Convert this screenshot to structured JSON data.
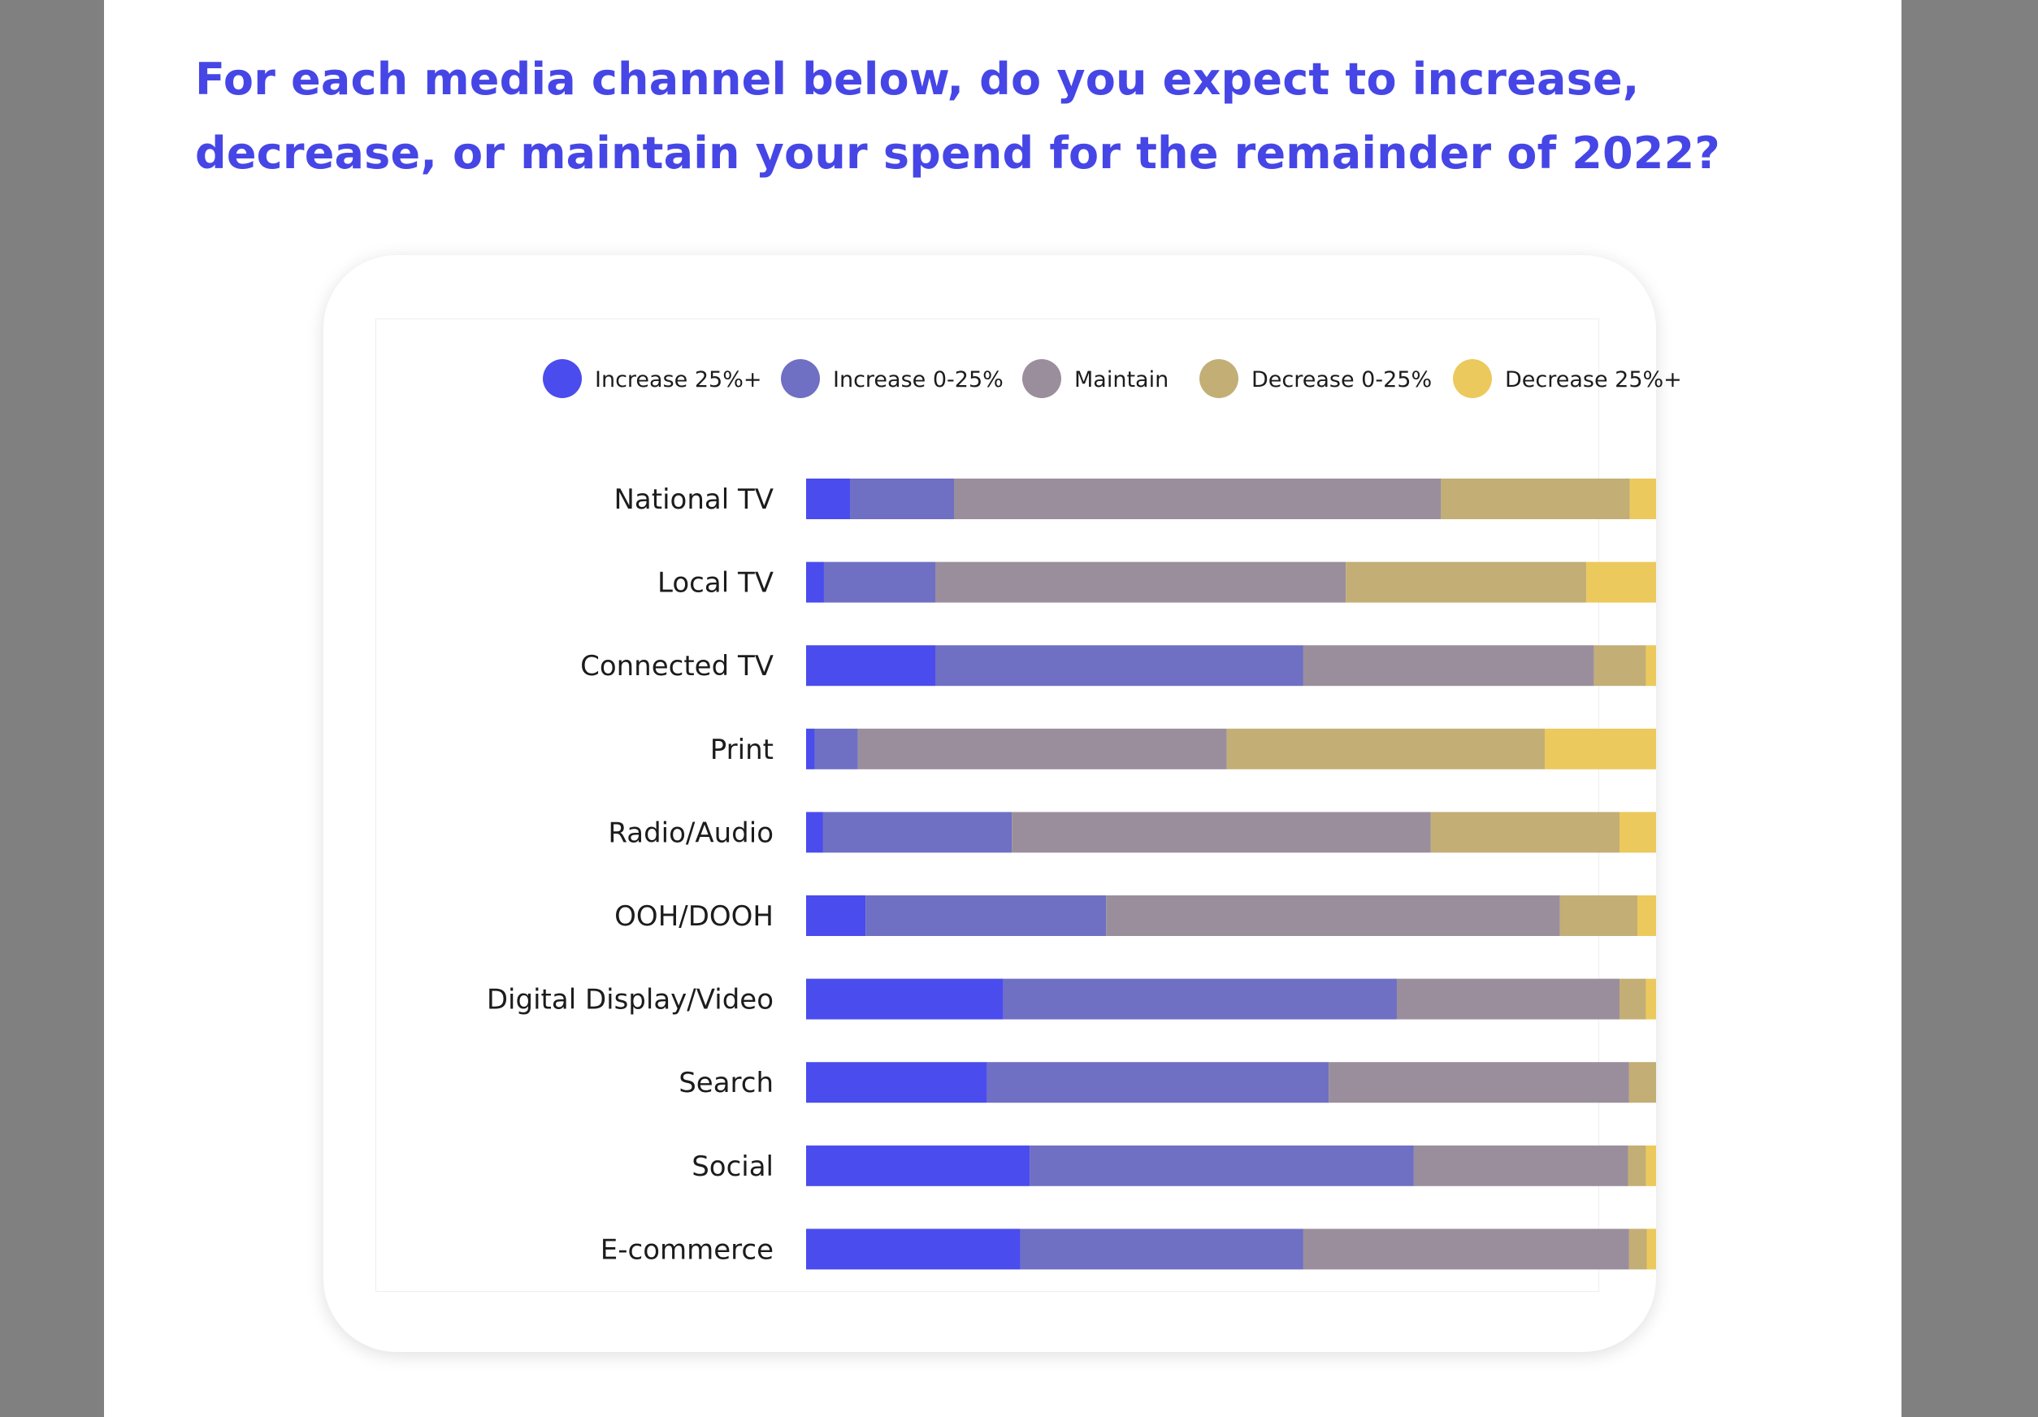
{
  "title": "For each media channel below, do you expect to increase, decrease, or maintain your spend for the remainder of 2022?",
  "colors": {
    "title": "#4646e6",
    "increase_25_plus": "#4a4ced",
    "increase_0_25": "#6f6fc4",
    "maintain": "#9b8e9c",
    "decrease_0_25": "#c3ae76",
    "decrease_25_plus": "#ecc95c"
  },
  "chart_data": {
    "type": "bar",
    "orientation": "horizontal",
    "stacked": true,
    "normalized": true,
    "title": "For each media channel below, do you expect to increase, decrease, or maintain your spend for the remainder of 2022?",
    "xlabel": "",
    "ylabel": "",
    "xlim": [
      0,
      100
    ],
    "unit": "% of respondents (estimated)",
    "legend_position": "top",
    "categories": [
      "National TV",
      "Local TV",
      "Connected TV",
      "Print",
      "Radio/Audio",
      "OOH/DOOH",
      "Digital Display/Video",
      "Search",
      "Social",
      "E-commerce"
    ],
    "series": [
      {
        "name": "Increase 25%+",
        "color": "#4a4ced",
        "values": [
          5.2,
          2.1,
          15.2,
          1.0,
          2.0,
          7.0,
          23.2,
          21.3,
          26.3,
          25.2
        ]
      },
      {
        "name": "Increase 0-25%",
        "color": "#6f6fc4",
        "values": [
          12.2,
          13.1,
          43.3,
          5.1,
          22.2,
          28.3,
          46.3,
          40.2,
          45.2,
          33.3
        ]
      },
      {
        "name": "Maintain",
        "color": "#9b8e9c",
        "values": [
          57.3,
          48.3,
          34.2,
          43.4,
          49.3,
          53.4,
          26.2,
          35.3,
          25.2,
          38.3
        ]
      },
      {
        "name": "Decrease 0-25%",
        "color": "#c3ae76",
        "values": [
          22.2,
          28.3,
          6.1,
          37.4,
          22.2,
          9.1,
          3.1,
          3.2,
          2.1,
          2.1
        ]
      },
      {
        "name": "Decrease 25%+",
        "color": "#ecc95c",
        "values": [
          3.1,
          8.2,
          1.2,
          13.1,
          4.3,
          2.2,
          1.2,
          0.0,
          1.2,
          1.1
        ]
      }
    ]
  }
}
